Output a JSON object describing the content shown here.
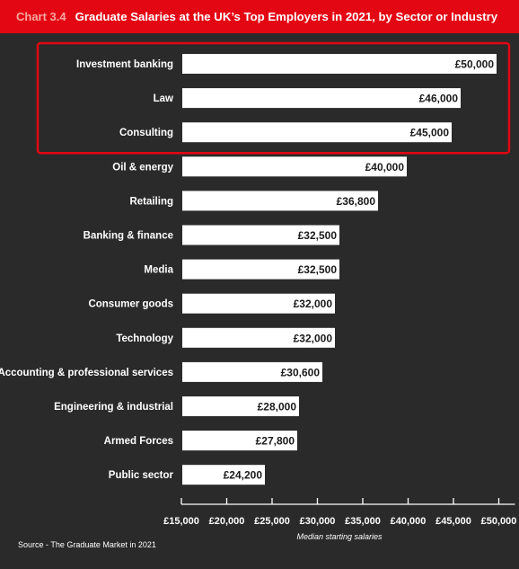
{
  "header": {
    "chart_number": "Chart 3.4",
    "title": "Graduate Salaries at the UK’s Top Employers in 2021, by Sector or Industry"
  },
  "colors": {
    "background": "#2a2a2a",
    "title_band": "#e30613",
    "bars": "#ffffff",
    "highlight_box": "#e30613"
  },
  "chart_data": {
    "type": "bar",
    "orientation": "horizontal",
    "categories": [
      "Investment banking",
      "Law",
      "Consulting",
      "Oil & energy",
      "Retailing",
      "Banking & finance",
      "Media",
      "Consumer goods",
      "Technology",
      "Accounting & professional services",
      "Engineering & industrial",
      "Armed Forces",
      "Public sector"
    ],
    "values": [
      50000,
      46000,
      45000,
      40000,
      36800,
      32500,
      32500,
      32000,
      32000,
      30600,
      28000,
      27800,
      24200
    ],
    "data_labels": [
      "£50,000",
      "£46,000",
      "£45,000",
      "£40,000",
      "£36,800",
      "£32,500",
      "£32,500",
      "£32,000",
      "£32,000",
      "£30,600",
      "£28,000",
      "£27,800",
      "£24,200"
    ],
    "xlabel": "Median starting salaries",
    "xlim": [
      15000,
      50000
    ],
    "ticks": [
      15000,
      20000,
      25000,
      30000,
      35000,
      40000,
      45000,
      50000
    ],
    "tick_labels": [
      "£15,000",
      "£20,000",
      "£25,000",
      "£30,000",
      "£35,000",
      "£40,000",
      "£45,000",
      "£50,000"
    ],
    "grid": false,
    "highlighted_categories": [
      "Investment banking",
      "Law",
      "Consulting"
    ]
  },
  "source": "Source - The Graduate Market in 2021"
}
